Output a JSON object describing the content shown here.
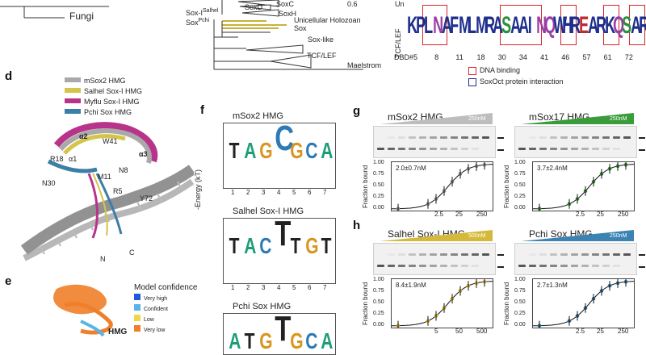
{
  "panel_letters": {
    "d": "d",
    "e": "e",
    "f": "f",
    "g": "g",
    "h": "h"
  },
  "tree": {
    "fungi": "Fungi",
    "scale_value": "0.6",
    "clades": [
      "SoxC",
      "SoxD",
      "SoxH",
      "Unicellular Holozoan Sox",
      "Sox-like",
      "TCF/LEF",
      "Maelstrom"
    ],
    "sox_salhel": "Sox-I",
    "sox_salhel_sup": "Salhel",
    "sox_pchi": "Sox",
    "sox_pchi_sup": "Pchi"
  },
  "alignment": {
    "row1_prefix": "Un",
    "row2_prefix": "TCF/LEF",
    "positions_label": "DBD#",
    "positions": [
      "5",
      "8",
      "11",
      "18",
      "30",
      "34",
      "41",
      "46",
      "57",
      "61",
      "72"
    ],
    "logo_letters": [
      "K",
      "P",
      "L",
      "N",
      "A",
      "F",
      "M",
      "L",
      "M",
      "R",
      "A",
      "S",
      "A",
      "A",
      "I",
      "N",
      "Q",
      "W",
      "H",
      "R",
      "E",
      "A",
      "R",
      "K",
      "Q",
      "S",
      "A",
      "R"
    ],
    "legend_red": "DNA binding",
    "legend_blue": "SoxOct protein interaction"
  },
  "structure_legend": {
    "items": [
      {
        "label": "mSox2 HMG",
        "color": "#a9a9a9"
      },
      {
        "label": "Salhel Sox-I HMG",
        "color": "#d4c44a"
      },
      {
        "label": "Myflu Sox-I HMG",
        "color": "#b8338a"
      },
      {
        "label": "Pchi Sox HMG",
        "color": "#3d7ea6"
      }
    ],
    "residue_labels": [
      "α2",
      "W41",
      "R18",
      "α1",
      "α3",
      "N8",
      "M11",
      "N30",
      "R5",
      "Y72",
      "N",
      "C"
    ]
  },
  "model_confidence": {
    "title": "Model confidence",
    "items": [
      {
        "label": "Very high",
        "color": "#1f5bd8"
      },
      {
        "label": "Confident",
        "color": "#5ab4e8"
      },
      {
        "label": "Low",
        "color": "#f2d64a"
      },
      {
        "label": "Very low",
        "color": "#ef7f2a"
      }
    ],
    "hmg": "HMG"
  },
  "logos": {
    "y_label": "-Energy (kT)",
    "titles": [
      "mSox2 HMG",
      "Salhel Sox-I HMG",
      "Pchi Sox HMG"
    ],
    "x_ticks": [
      "1",
      "2",
      "3",
      "4",
      "5",
      "6",
      "7"
    ],
    "colors": {
      "A": "#1b9e77",
      "C": "#2c7bb6",
      "G": "#d9961f",
      "T": "#222222"
    }
  },
  "binding": {
    "y_label": "Fraction bound",
    "y_ticks": [
      "1.00",
      "0.75",
      "0.50",
      "0.25",
      "0.00"
    ],
    "panels": [
      {
        "title": "mSox2 HMG",
        "conc_label": "250nM",
        "kd": "2.0±0.7nM",
        "x_ticks": [
          "2.5",
          "25",
          "250"
        ],
        "color": "#888888",
        "wedge_color": "#bdbdbd"
      },
      {
        "title": "mSox17 HMG",
        "conc_label": "250nM",
        "kd": "3.7±2.4nM",
        "x_ticks": [
          "2.5",
          "25",
          "250"
        ],
        "color": "#2e8b2e",
        "wedge_color": "#3a9b3a"
      },
      {
        "title": "Salhel Sox-I HMG",
        "conc_label": "500nM",
        "kd": "8.4±1.9nM",
        "x_ticks": [
          "5",
          "50",
          "500"
        ],
        "color": "#c7a52c",
        "wedge_color": "#d4b93a"
      },
      {
        "title": "Pchi Sox HMG",
        "conc_label": "250nM",
        "kd": "2.7±1.3nM",
        "x_ticks": [
          "2.5",
          "25",
          "250"
        ],
        "color": "#2a6d96",
        "wedge_color": "#3a83b3"
      }
    ]
  }
}
